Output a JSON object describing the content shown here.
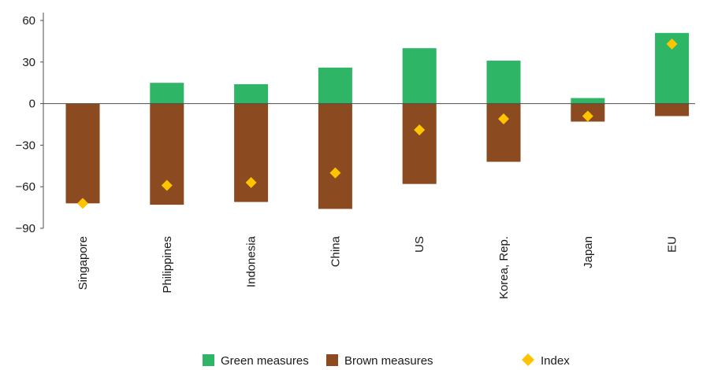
{
  "chart_data": {
    "type": "bar",
    "categories": [
      "Singapore",
      "Philippines",
      "Indonesia",
      "China",
      "US",
      "Korea, Rep.",
      "Japan",
      "EU"
    ],
    "series": [
      {
        "name": "Green measures",
        "kind": "bar",
        "color": "#2eb565",
        "values": [
          0,
          15,
          14,
          26,
          40,
          31,
          4,
          51
        ]
      },
      {
        "name": "Brown measures",
        "kind": "bar",
        "color": "#8b4a1f",
        "values": [
          -72,
          -73,
          -71,
          -76,
          -58,
          -42,
          -13,
          -9
        ]
      },
      {
        "name": "Index",
        "kind": "marker",
        "marker": "diamond",
        "color": "#ffc400",
        "values": [
          -72,
          -59,
          -57,
          -50,
          -19,
          -11,
          -9,
          43
        ]
      }
    ],
    "yticks": [
      60,
      30,
      0,
      -30,
      -60,
      -90
    ],
    "ytick_labels": [
      "60",
      "30",
      "0",
      "−30",
      "−60",
      "−90"
    ],
    "ylim": [
      -90,
      60
    ],
    "grid": false,
    "legend": "bottom",
    "title": "",
    "xlabel": "",
    "ylabel": ""
  }
}
